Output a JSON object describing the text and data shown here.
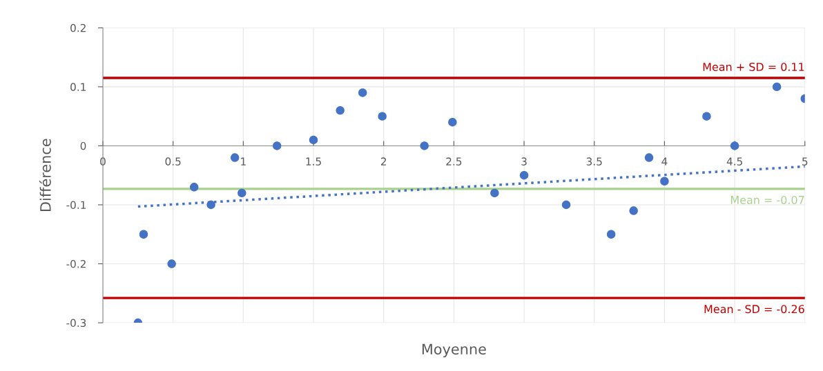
{
  "chart_data": {
    "type": "scatter",
    "xlabel": "Moyenne",
    "ylabel": "Différence",
    "xlim": [
      0,
      5
    ],
    "xticks": [
      0,
      0.5,
      1,
      1.5,
      2,
      2.5,
      3,
      3.5,
      4,
      4.5,
      5
    ],
    "ylim": [
      -0.3,
      0.2
    ],
    "yticks": [
      -0.3,
      -0.2,
      -0.1,
      0,
      0.1,
      0.2
    ],
    "grid": true,
    "marker": "circle",
    "series": [
      {
        "color": "#4472c4",
        "x": [
          0.25,
          0.29,
          0.49,
          0.65,
          0.77,
          0.94,
          0.99,
          1.24,
          1.5,
          1.69,
          1.85,
          1.99,
          2.29,
          2.49,
          2.79,
          3.0,
          3.3,
          3.62,
          3.78,
          3.89,
          4.0,
          4.3,
          4.5,
          4.8,
          5.0
        ],
        "values": [
          -0.3,
          -0.15,
          -0.2,
          -0.07,
          -0.1,
          -0.02,
          -0.08,
          0,
          0.01,
          0.06,
          0.09,
          0.05,
          0,
          0.04,
          -0.08,
          -0.05,
          -0.1,
          -0.15,
          -0.11,
          -0.02,
          -0.06,
          0.05,
          0,
          0.1,
          0.08
        ]
      },
      {
        "type": "line",
        "color": "#4472c4",
        "line_style": "dotted",
        "marker": "none",
        "x": [
          0.25,
          5.0
        ],
        "values": [
          -0.103,
          -0.035
        ]
      }
    ],
    "ref_lines": [
      {
        "axis": "y",
        "value": 0.115,
        "label": "Mean + SD = 0.11",
        "color": "#c00000"
      },
      {
        "axis": "y",
        "value": -0.073,
        "label": "Mean = -0.07",
        "color": "#a9d18e"
      },
      {
        "axis": "y",
        "value": -0.258,
        "label": "Mean - SD = -0.26",
        "color": "#c00000"
      }
    ]
  }
}
